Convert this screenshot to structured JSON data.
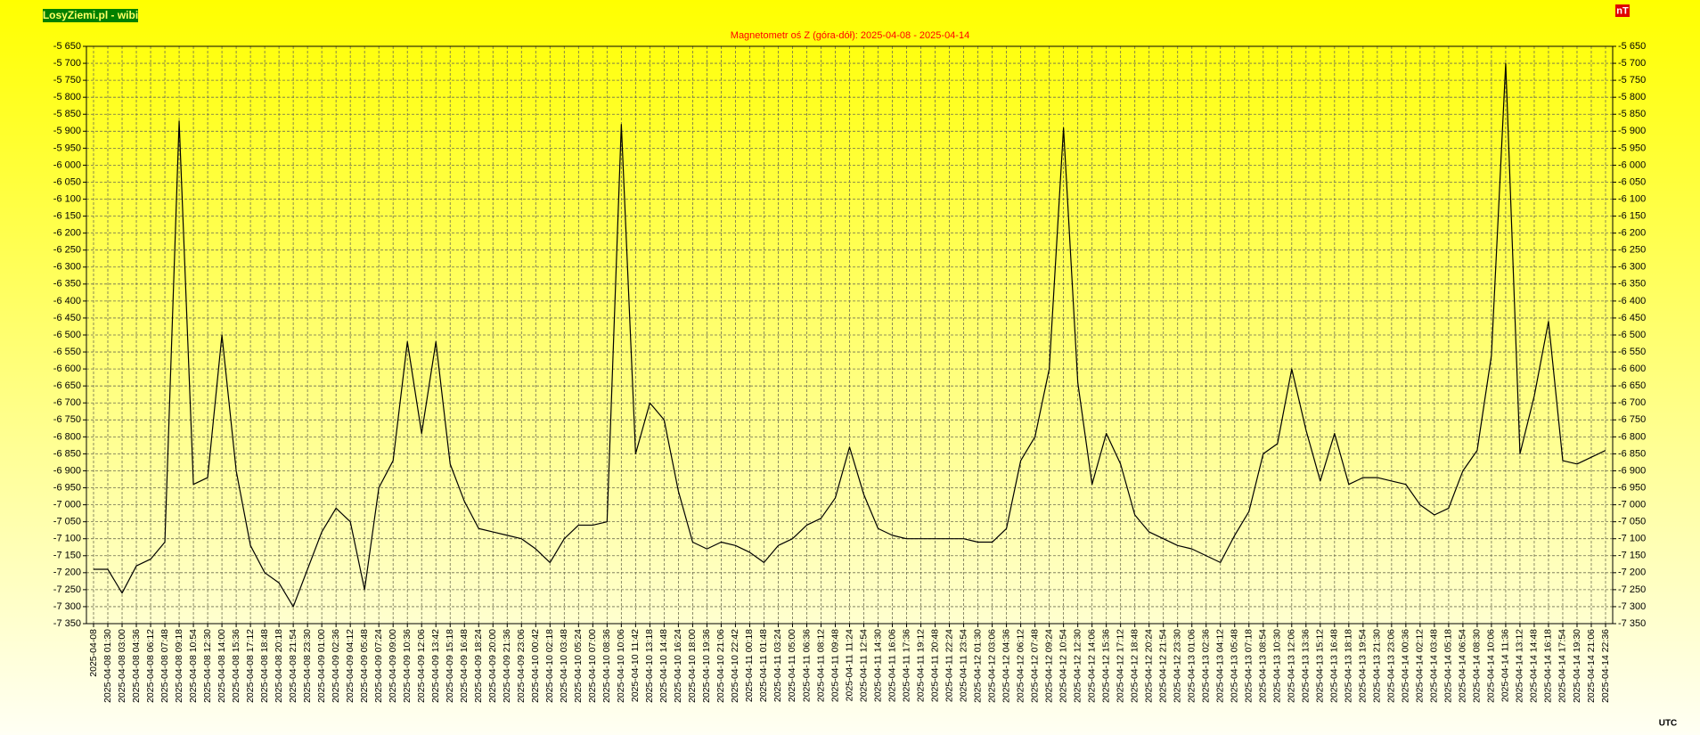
{
  "chart_data": {
    "type": "line",
    "title": "Magnetometr oś Z (góra-dół): 2025-04-08 - 2025-04-14",
    "watermark": "LosyZiemi.pl - wibi",
    "y_unit": "nT",
    "x_unit": "UTC",
    "color": "#000000",
    "grid": true,
    "ylim": [
      -7350,
      -5650
    ],
    "yticks": [
      {
        "value": -7350,
        "label": "-7 350"
      },
      {
        "value": -7300,
        "label": "-7 300"
      },
      {
        "value": -7250,
        "label": "-7 250"
      },
      {
        "value": -7200,
        "label": "-7 200"
      },
      {
        "value": -7150,
        "label": "-7 150"
      },
      {
        "value": -7100,
        "label": "-7 100"
      },
      {
        "value": -7050,
        "label": "-7 050"
      },
      {
        "value": -7000,
        "label": "-7 000"
      },
      {
        "value": -6950,
        "label": "-6 950"
      },
      {
        "value": -6900,
        "label": "-6 900"
      },
      {
        "value": -6850,
        "label": "-6 850"
      },
      {
        "value": -6800,
        "label": "-6 800"
      },
      {
        "value": -6750,
        "label": "-6 750"
      },
      {
        "value": -6700,
        "label": "-6 700"
      },
      {
        "value": -6650,
        "label": "-6 650"
      },
      {
        "value": -6600,
        "label": "-6 600"
      },
      {
        "value": -6550,
        "label": "-6 550"
      },
      {
        "value": -6500,
        "label": "-6 500"
      },
      {
        "value": -6450,
        "label": "-6 450"
      },
      {
        "value": -6400,
        "label": "-6 400"
      },
      {
        "value": -6350,
        "label": "-6 350"
      },
      {
        "value": -6300,
        "label": "-6 300"
      },
      {
        "value": -6250,
        "label": "-6 250"
      },
      {
        "value": -6200,
        "label": "-6 200"
      },
      {
        "value": -6150,
        "label": "-6 150"
      },
      {
        "value": -6100,
        "label": "-6 100"
      },
      {
        "value": -6050,
        "label": "-6 050"
      },
      {
        "value": -6000,
        "label": "-6 000"
      },
      {
        "value": -5950,
        "label": "-5 950"
      },
      {
        "value": -5900,
        "label": "-5 900"
      },
      {
        "value": -5850,
        "label": "-5 850"
      },
      {
        "value": -5800,
        "label": "-5 800"
      },
      {
        "value": -5750,
        "label": "-5 750"
      },
      {
        "value": -5700,
        "label": "-5 700"
      },
      {
        "value": -5650,
        "label": "-5 650"
      }
    ],
    "categories": [
      "2025-04-08",
      "2025-04-08 01:30",
      "2025-04-08 03:00",
      "2025-04-08 04:36",
      "2025-04-08 06:12",
      "2025-04-08 07:48",
      "2025-04-08 09:18",
      "2025-04-08 10:54",
      "2025-04-08 12:30",
      "2025-04-08 14:00",
      "2025-04-08 15:36",
      "2025-04-08 17:12",
      "2025-04-08 18:48",
      "2025-04-08 20:18",
      "2025-04-08 21:54",
      "2025-04-08 23:30",
      "2025-04-09 01:00",
      "2025-04-09 02:36",
      "2025-04-09 04:12",
      "2025-04-09 05:48",
      "2025-04-09 07:24",
      "2025-04-09 09:00",
      "2025-04-09 10:36",
      "2025-04-09 12:06",
      "2025-04-09 13:42",
      "2025-04-09 15:18",
      "2025-04-09 16:48",
      "2025-04-09 18:24",
      "2025-04-09 20:00",
      "2025-04-09 21:36",
      "2025-04-09 23:06",
      "2025-04-10 00:42",
      "2025-04-10 02:18",
      "2025-04-10 03:48",
      "2025-04-10 05:24",
      "2025-04-10 07:00",
      "2025-04-10 08:36",
      "2025-04-10 10:06",
      "2025-04-10 11:42",
      "2025-04-10 13:18",
      "2025-04-10 14:48",
      "2025-04-10 16:24",
      "2025-04-10 18:00",
      "2025-04-10 19:36",
      "2025-04-10 21:06",
      "2025-04-10 22:42",
      "2025-04-11 00:18",
      "2025-04-11 01:48",
      "2025-04-11 03:24",
      "2025-04-11 05:00",
      "2025-04-11 06:36",
      "2025-04-11 08:12",
      "2025-04-11 09:48",
      "2025-04-11 11:24",
      "2025-04-11 12:54",
      "2025-04-11 14:30",
      "2025-04-11 16:06",
      "2025-04-11 17:36",
      "2025-04-11 19:12",
      "2025-04-11 20:48",
      "2025-04-11 22:24",
      "2025-04-11 23:54",
      "2025-04-12 01:30",
      "2025-04-12 03:06",
      "2025-04-12 04:36",
      "2025-04-12 06:12",
      "2025-04-12 07:48",
      "2025-04-12 09:24",
      "2025-04-12 10:54",
      "2025-04-12 12:30",
      "2025-04-12 14:06",
      "2025-04-12 15:36",
      "2025-04-12 17:12",
      "2025-04-12 18:48",
      "2025-04-12 20:24",
      "2025-04-12 21:54",
      "2025-04-12 23:30",
      "2025-04-13 01:06",
      "2025-04-13 02:36",
      "2025-04-13 04:12",
      "2025-04-13 05:48",
      "2025-04-13 07:18",
      "2025-04-13 08:54",
      "2025-04-13 10:30",
      "2025-04-13 12:06",
      "2025-04-13 13:36",
      "2025-04-13 15:12",
      "2025-04-13 16:48",
      "2025-04-13 18:18",
      "2025-04-13 19:54",
      "2025-04-13 21:30",
      "2025-04-13 23:06",
      "2025-04-14 00:36",
      "2025-04-14 02:12",
      "2025-04-14 03:48",
      "2025-04-14 05:18",
      "2025-04-14 06:54",
      "2025-04-14 08:30",
      "2025-04-14 10:06",
      "2025-04-14 11:36",
      "2025-04-14 13:12",
      "2025-04-14 14:48",
      "2025-04-14 16:18",
      "2025-04-14 17:54",
      "2025-04-14 19:30",
      "2025-04-14 21:06",
      "2025-04-14 22:36"
    ],
    "values": [
      -7190,
      -7190,
      -7260,
      -7180,
      -7160,
      -7110,
      -5870,
      -6940,
      -6920,
      -6500,
      -6900,
      -7120,
      -7200,
      -7230,
      -7300,
      -7190,
      -7080,
      -7010,
      -7050,
      -7250,
      -6950,
      -6870,
      -6520,
      -6790,
      -6520,
      -6880,
      -6990,
      -7070,
      -7080,
      -7090,
      -7100,
      -7130,
      -7170,
      -7100,
      -7060,
      -7060,
      -7050,
      -5880,
      -6850,
      -6700,
      -6750,
      -6960,
      -7110,
      -7130,
      -7110,
      -7120,
      -7140,
      -7170,
      -7120,
      -7100,
      -7060,
      -7040,
      -6980,
      -6830,
      -6970,
      -7070,
      -7090,
      -7100,
      -7100,
      -7100,
      -7100,
      -7100,
      -7110,
      -7110,
      -7070,
      -6870,
      -6800,
      -6600,
      -5890,
      -6640,
      -6940,
      -6790,
      -6880,
      -7030,
      -7080,
      -7100,
      -7120,
      -7130,
      -7150,
      -7170,
      -7090,
      -7020,
      -6850,
      -6820,
      -6600,
      -6780,
      -6930,
      -6790,
      -6940,
      -6920,
      -6920,
      -6930,
      -6940,
      -7000,
      -7030,
      -7010,
      -6900,
      -6840,
      -6560,
      -5700,
      -6850,
      -6680,
      -6460,
      -6870,
      -6880,
      -6860,
      -6840
    ]
  }
}
